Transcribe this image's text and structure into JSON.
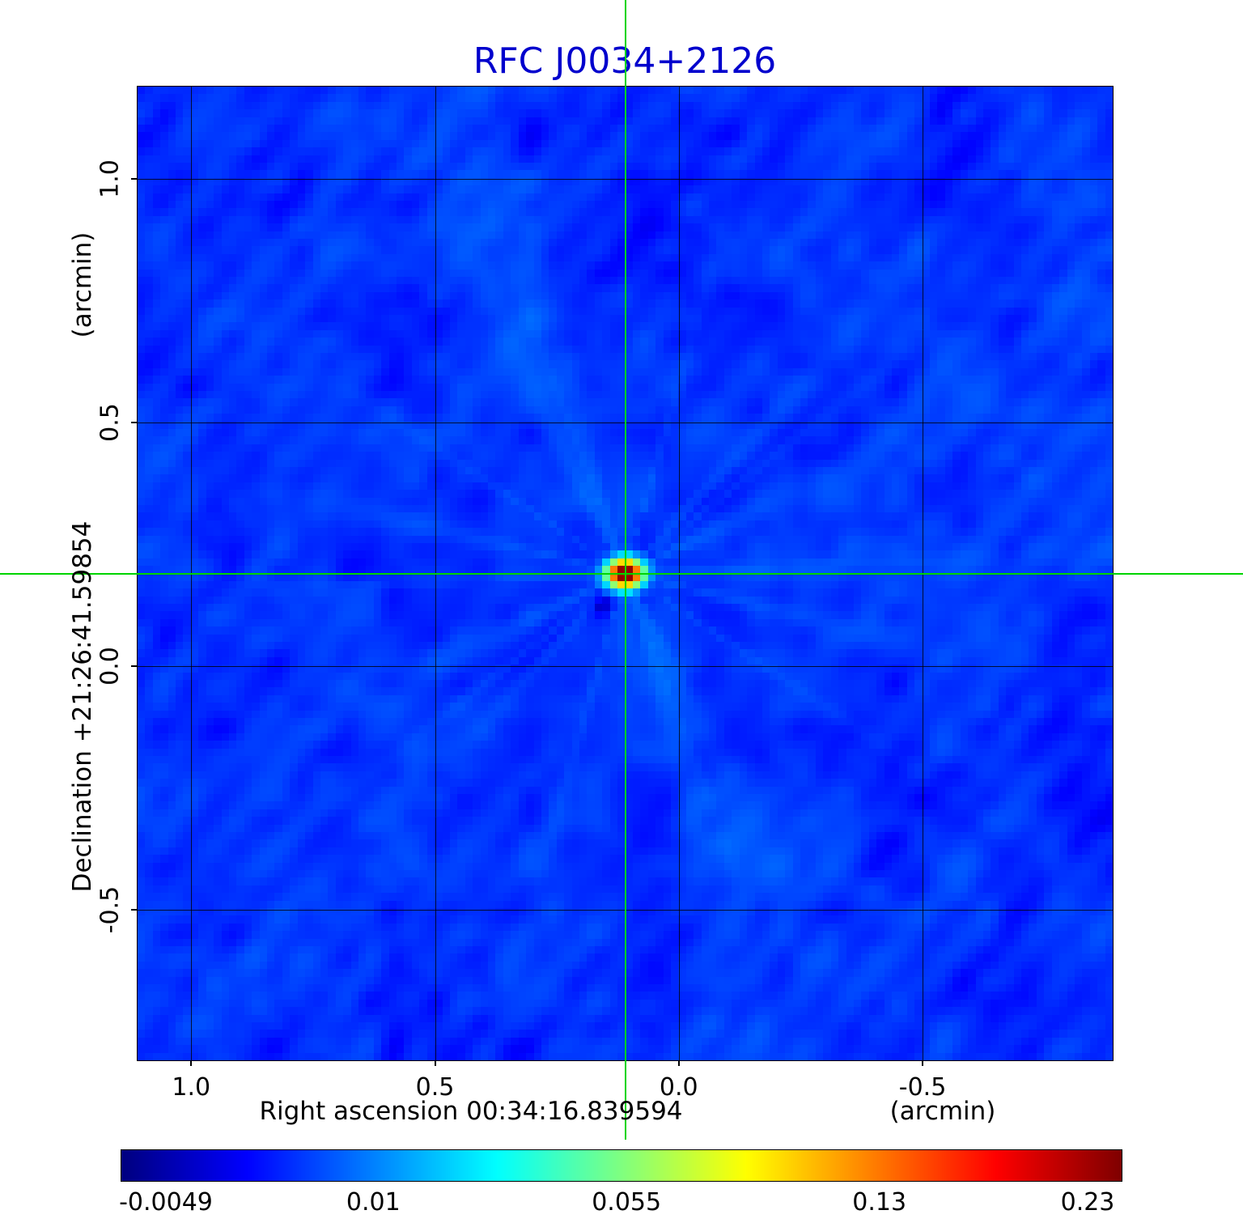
{
  "title": "RFC J0034+2126",
  "colors": {
    "title": "#0000cd",
    "crosshair": "#00d400",
    "gridline": "rgba(0,0,0,0.8)",
    "map_background_blue": "#0030ff"
  },
  "axes": {
    "x_label": "Right ascension  00:34:16.839594",
    "x_unit": "(arcmin)",
    "y_label": "Declination  +21:26:41.59854",
    "y_unit": "(arcmin)",
    "x_tick_labels": [
      "1.0",
      "0.5",
      "0.0",
      "-0.5"
    ],
    "y_tick_labels": [
      "1.0",
      "0.5",
      "0.0",
      "-0.5"
    ]
  },
  "colorbar": {
    "tick_labels": [
      "-0.0049",
      "0.01",
      "0.055",
      "0.13",
      "0.23"
    ]
  },
  "chart_data": {
    "type": "heatmap",
    "title": "RFC J0034+2126",
    "xlabel": "Right ascension 00:34:16.839594 (arcmin)",
    "ylabel": "Declination +21:26:41.59854 (arcmin)",
    "x_ticks": [
      1.0,
      0.5,
      0.0,
      -0.5
    ],
    "y_ticks": [
      1.0,
      0.5,
      0.0,
      -0.5
    ],
    "x_range": [
      1.11,
      -0.89
    ],
    "y_range": [
      -0.81,
      1.19
    ],
    "grid": true,
    "grid_size": 128,
    "colormap": "jet",
    "stretch": "sqrt",
    "value_min": -0.0049,
    "value_max": 0.23,
    "colorbar_ticks": [
      -0.0049,
      0.01,
      0.055,
      0.13,
      0.23
    ],
    "background_level": 0.002,
    "source": {
      "x_arcmin": 0.11,
      "y_arcmin": 0.19,
      "peak": 0.23,
      "marked_by_crosshair": true
    }
  }
}
